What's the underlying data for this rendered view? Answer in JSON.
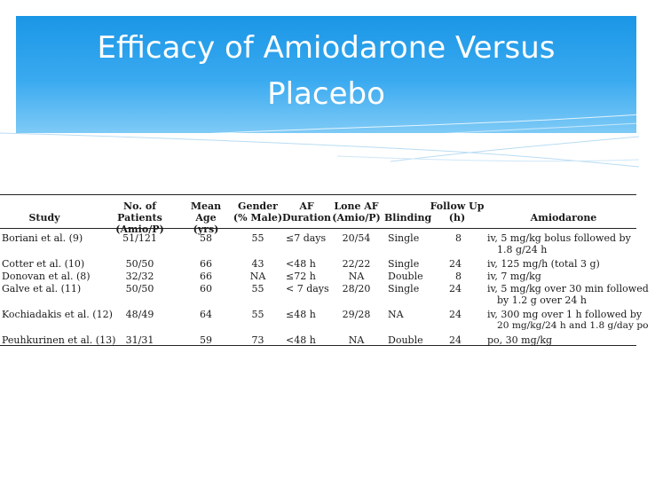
{
  "slide": {
    "title_line1": "Efficacy of Amiodarone Versus",
    "title_line2": "Placebo"
  },
  "table": {
    "headers": {
      "study": "Study",
      "patients": [
        "No. of Patients",
        "(Amio/P)"
      ],
      "age": [
        "Mean Age",
        "(yrs)"
      ],
      "gender": [
        "Gender",
        "(% Male)"
      ],
      "af": [
        "AF",
        "Duration"
      ],
      "lone": [
        "Lone AF",
        "(Amio/P)"
      ],
      "blinding": "Blinding",
      "follow": [
        "Follow Up",
        "(h)"
      ],
      "amio": "Amiodarone"
    },
    "rows": [
      {
        "study": "Boriani et al. (9)",
        "patients": "51/121",
        "age": "58",
        "gender": "55",
        "af": "≤7 days",
        "lone": "20/54",
        "blinding": "Single",
        "follow": "8",
        "amio": [
          "iv, 5 mg/kg bolus followed by",
          "1.8 g/24 h"
        ]
      },
      {
        "study": "Cotter et al. (10)",
        "patients": "50/50",
        "age": "66",
        "gender": "43",
        "af": "<48 h",
        "lone": "22/22",
        "blinding": "Single",
        "follow": "24",
        "amio": [
          "iv, 125 mg/h (total 3 g)"
        ]
      },
      {
        "study": "Donovan et al. (8)",
        "patients": "32/32",
        "age": "66",
        "gender": "NA",
        "af": "≤72 h",
        "lone": "NA",
        "blinding": "Double",
        "follow": "8",
        "amio": [
          "iv, 7 mg/kg"
        ]
      },
      {
        "study": "Galve et al. (11)",
        "patients": "50/50",
        "age": "60",
        "gender": "55",
        "af": "< 7 days",
        "lone": "28/20",
        "blinding": "Single",
        "follow": "24",
        "amio": [
          "iv, 5 mg/kg over 30 min followed",
          "by 1.2 g over 24 h"
        ]
      },
      {
        "study": "Kochiadakis et al. (12)",
        "patients": "48/49",
        "age": "64",
        "gender": "55",
        "af": "≤48 h",
        "lone": "29/28",
        "blinding": "NA",
        "follow": "24",
        "amio": [
          "iv, 300 mg over 1 h followed by",
          "20 mg/kg/24 h and 1.8 g/day po"
        ]
      },
      {
        "study": "Peuhkurinen et al. (13)",
        "patients": "31/31",
        "age": "59",
        "gender": "73",
        "af": "<48 h",
        "lone": "NA",
        "blinding": "Double",
        "follow": "24",
        "amio": [
          "po, 30 mg/kg"
        ]
      }
    ]
  }
}
